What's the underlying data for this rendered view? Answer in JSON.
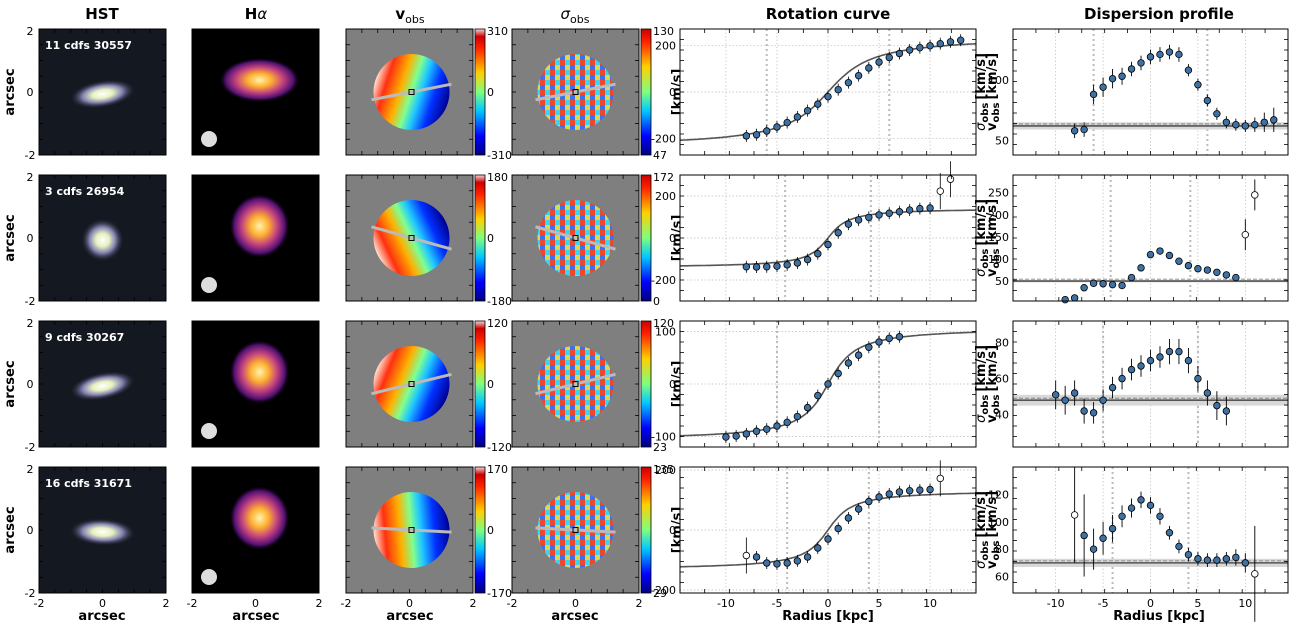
{
  "headers": {
    "hst": "HST",
    "ha": "H",
    "ha_greek": "α",
    "vobs_main": "v",
    "vobs_sub": "obs",
    "sig_main": "σ",
    "sig_sub": "obs",
    "rc": "Rotation curve",
    "disp": "Dispersion profile"
  },
  "labels": {
    "arcsec": "arcsec",
    "radius": "Radius [kpc]",
    "cb_unit": "[km/s]",
    "v_ylabel_main": "v",
    "v_ylabel_sub": "obs",
    "s_ylabel_main": "σ",
    "s_ylabel_sub": "obs",
    "s_unit": "[km/s]"
  },
  "map_ticks": [
    "-2",
    "0",
    "2"
  ],
  "radius_ticks": [
    "-10",
    "-5",
    "0",
    "5",
    "10"
  ],
  "colors": {
    "marker": "#3f72a4",
    "model": "#555555",
    "grid": "#bbbbbb",
    "map_bg": "#7f7f7f"
  },
  "galaxies": [
    {
      "label": "11 cdfs 30557",
      "vobs_cb": [
        "310",
        "0",
        "-310"
      ],
      "sig_cb": [
        "130",
        "47"
      ],
      "pa_deg": 18,
      "rc_yticks": [
        "200",
        "0",
        "-200"
      ],
      "ds_yticks": [
        "100",
        "50"
      ],
      "chart_data": {
        "type": "scatter",
        "rotation_curve": {
          "xlim": [
            -14.5,
            14.5
          ],
          "ylim": [
            -270,
            270
          ],
          "x": [
            -8,
            -7,
            -6,
            -5,
            -4,
            -3,
            -2,
            -1,
            0,
            1,
            2,
            3,
            4,
            5,
            6,
            7,
            8,
            9,
            10,
            11,
            12,
            13
          ],
          "v": [
            -188,
            -183,
            -167,
            -150,
            -131,
            -107,
            -80,
            -52,
            -20,
            10,
            40,
            70,
            103,
            128,
            148,
            165,
            180,
            190,
            198,
            207,
            215,
            222
          ],
          "open_x": [],
          "open_v": [],
          "vmax": 240,
          "rt": 3.2,
          "vdisp_lines": [
            -6,
            6
          ]
        },
        "dispersion_profile": {
          "xlim": [
            -14.5,
            14.5
          ],
          "ylim": [
            38,
            142
          ],
          "x": [
            -8,
            -7,
            -6,
            -5,
            -4,
            -3,
            -2,
            -1,
            0,
            1,
            2,
            3,
            4,
            5,
            6,
            7,
            8,
            9,
            10,
            11,
            12,
            13
          ],
          "s": [
            58,
            59,
            88,
            94,
            101,
            103,
            109,
            114,
            119,
            121,
            123,
            121,
            108,
            96,
            83,
            72,
            65,
            63,
            62,
            63,
            65,
            67
          ],
          "err": [
            6,
            6,
            8,
            8,
            8,
            7,
            6,
            6,
            6,
            6,
            6,
            6,
            5,
            5,
            5,
            5,
            5,
            5,
            5,
            6,
            8,
            10
          ],
          "open_x": [],
          "open_s": [],
          "sigma0": 62,
          "band": 3,
          "vdisp_lines": [
            -6,
            6
          ]
        }
      }
    },
    {
      "label": "3 cdfs 26954",
      "vobs_cb": [
        "180",
        "0",
        "-180"
      ],
      "sig_cb": [
        "172",
        "0"
      ],
      "pa_deg": -25,
      "rc_yticks": [
        "200",
        "0",
        "-200"
      ],
      "ds_yticks": [
        "250",
        "200",
        "150",
        "100",
        "50"
      ],
      "chart_data": {
        "type": "scatter",
        "rotation_curve": {
          "xlim": [
            -14.5,
            14.5
          ],
          "ylim": [
            -300,
            300
          ],
          "x": [
            -8,
            -7,
            -6,
            -5,
            -4,
            -3,
            -2,
            -1,
            0,
            1,
            2,
            3,
            4,
            5,
            6,
            7,
            8,
            9,
            10
          ],
          "v": [
            -137,
            -138,
            -137,
            -134,
            -128,
            -119,
            -103,
            -75,
            -31,
            25,
            66,
            86,
            98,
            110,
            118,
            125,
            133,
            140,
            143
          ],
          "open_x": [
            11,
            12
          ],
          "open_v": [
            223,
            280
          ],
          "vmax": 142,
          "rt": 1.5,
          "vdisp_lines": [
            -4.2,
            4.2
          ]
        },
        "dispersion_profile": {
          "xlim": [
            -14.5,
            14.5
          ],
          "ylim": [
            5,
            290
          ],
          "x": [
            -9,
            -8,
            -7,
            -6,
            -5,
            -4,
            -3,
            -2,
            -1,
            0,
            1,
            2,
            3,
            4,
            5,
            6,
            7,
            8,
            9
          ],
          "s": [
            8,
            12,
            35,
            45,
            44,
            42,
            40,
            58,
            80,
            110,
            118,
            108,
            95,
            85,
            78,
            75,
            70,
            64,
            58
          ],
          "err": [
            4,
            4,
            4,
            4,
            4,
            4,
            4,
            5,
            6,
            8,
            8,
            7,
            6,
            5,
            5,
            5,
            5,
            5,
            6
          ],
          "open_x": [
            10,
            11
          ],
          "open_s": [
            155,
            245
          ],
          "sigma0": 50,
          "band": 3,
          "vdisp_lines": [
            -4.2,
            4.2
          ]
        }
      }
    },
    {
      "label": "9 cdfs 30267",
      "vobs_cb": [
        "120",
        "0",
        "-120"
      ],
      "sig_cb": [
        "120",
        "23"
      ],
      "pa_deg": 22,
      "rc_yticks": [
        "100",
        "0",
        "-100"
      ],
      "ds_yticks": [
        "80",
        "60",
        "40"
      ],
      "chart_data": {
        "type": "scatter",
        "rotation_curve": {
          "xlim": [
            -14.5,
            14.5
          ],
          "ylim": [
            -120,
            120
          ],
          "x": [
            -10,
            -9,
            -8,
            -7,
            -6,
            -5,
            -4,
            -3,
            -2,
            -1,
            0,
            1,
            2,
            3,
            4,
            5,
            6,
            7
          ],
          "v": [
            -101,
            -99,
            -95,
            -90,
            -86,
            -80,
            -73,
            -62,
            -45,
            -22,
            0,
            20,
            40,
            55,
            70,
            80,
            87,
            90
          ],
          "open_x": [],
          "open_v": [],
          "vmax": 108,
          "rt": 2.0,
          "vdisp_lines": [
            -5,
            5
          ]
        },
        "dispersion_profile": {
          "xlim": [
            -14.5,
            14.5
          ],
          "ylim": [
            22,
            92
          ],
          "x": [
            -10,
            -9,
            -8,
            -7,
            -6,
            -5,
            -4,
            -3,
            -2,
            -1,
            0,
            1,
            2,
            3,
            4,
            5,
            6,
            7,
            8
          ],
          "s": [
            51,
            48,
            52,
            42,
            41,
            48,
            55,
            60,
            65,
            67,
            70,
            72,
            75,
            75,
            70,
            60,
            52,
            45,
            42
          ],
          "err": [
            8,
            8,
            7,
            7,
            6,
            6,
            6,
            6,
            6,
            6,
            6,
            6,
            7,
            7,
            7,
            7,
            7,
            8,
            8
          ],
          "open_x": [],
          "open_s": [],
          "sigma0": 48,
          "band": 3,
          "vdisp_lines": [
            -5,
            5
          ]
        }
      }
    },
    {
      "label": "16 cdfs 31671",
      "vobs_cb": [
        "170",
        "0",
        "-170"
      ],
      "sig_cb": [
        "135",
        "29"
      ],
      "pa_deg": -5,
      "rc_yticks": [
        "200",
        "0",
        "-200"
      ],
      "ds_yticks": [
        "120",
        "100",
        "80",
        "60"
      ],
      "chart_data": {
        "type": "scatter",
        "rotation_curve": {
          "xlim": [
            -14.5,
            14.5
          ],
          "ylim": [
            -210,
            210
          ],
          "x": [
            -7,
            -6,
            -5,
            -4,
            -3,
            -2,
            -1,
            0,
            1,
            2,
            3,
            4,
            5,
            6,
            7,
            8,
            9,
            10
          ],
          "v": [
            -90,
            -110,
            -113,
            -110,
            -103,
            -90,
            -60,
            -30,
            5,
            40,
            70,
            95,
            110,
            120,
            127,
            131,
            133,
            135
          ],
          "open_x": [
            -8,
            11
          ],
          "open_v": [
            -85,
            172
          ],
          "vmax": 133,
          "rt": 1.8,
          "vdisp_lines": [
            -4,
            4
          ]
        },
        "dispersion_profile": {
          "xlim": [
            -14.5,
            14.5
          ],
          "ylim": [
            48,
            140
          ],
          "x": [
            -7,
            -6,
            -5,
            -4,
            -3,
            -2,
            -1,
            0,
            1,
            2,
            3,
            4,
            5,
            6,
            7,
            8,
            9,
            10
          ],
          "s": [
            90,
            80,
            88,
            95,
            104,
            110,
            116,
            112,
            104,
            92,
            82,
            76,
            73,
            72,
            72,
            73,
            74,
            70
          ],
          "err": [
            30,
            15,
            12,
            10,
            8,
            7,
            6,
            6,
            6,
            5,
            5,
            5,
            5,
            5,
            5,
            5,
            6,
            7
          ],
          "open_x": [
            -8,
            11
          ],
          "open_s": [
            105,
            62
          ],
          "sigma0": 70,
          "band": 3,
          "vdisp_lines": [
            -4,
            4
          ]
        }
      }
    }
  ]
}
